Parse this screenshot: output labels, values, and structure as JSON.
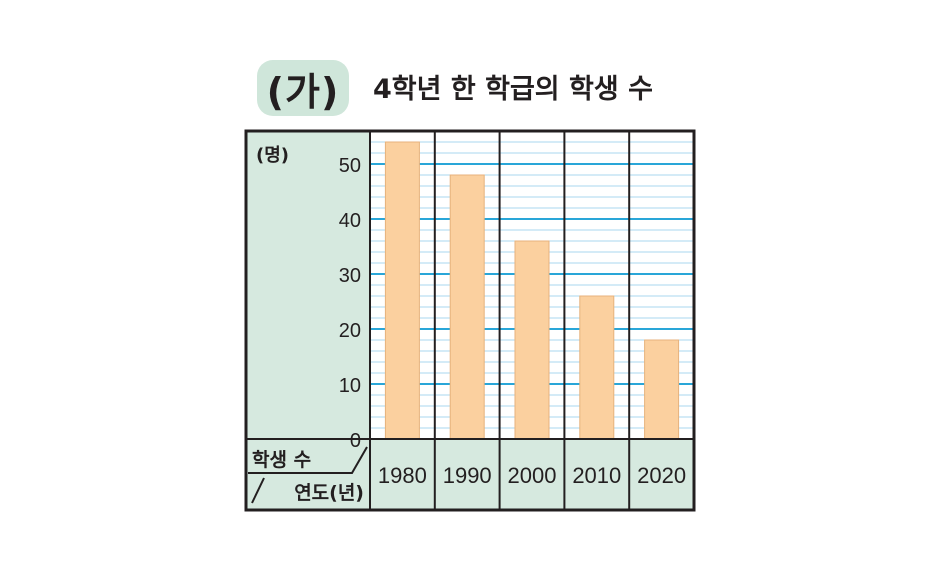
{
  "badge": "(가)",
  "title": "4학년 한 학급의 학생 수",
  "colors": {
    "panel": "#d6e9df",
    "grid_major": "#29a6d8",
    "grid_minor": "#a9d7ef",
    "bar": "#fbd09f",
    "bar_stroke": "#e7b27c",
    "border": "#231f20",
    "badge": "#cfe6da"
  },
  "chart_data": {
    "type": "bar",
    "title": "4학년 한 학급의 학생 수",
    "y_unit": "(명)",
    "row_label": "학생 수",
    "col_label": "연도(년)",
    "categories": [
      "1980",
      "1990",
      "2000",
      "2010",
      "2020"
    ],
    "values": [
      54,
      48,
      36,
      26,
      18
    ],
    "ylim": [
      0,
      55
    ],
    "y_ticks": [
      0,
      10,
      20,
      30,
      40,
      50
    ],
    "minor_step": 2,
    "grid": true,
    "legend": "none"
  }
}
